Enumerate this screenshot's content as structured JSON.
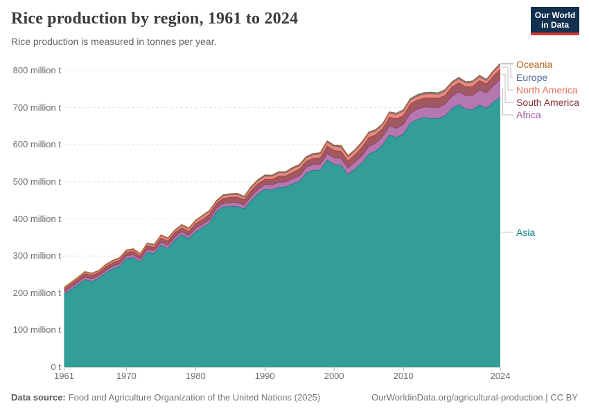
{
  "header": {
    "title": "Rice production by region, 1961 to 2024",
    "subtitle": "Rice production is measured in tonnes per year.",
    "logo_line1": "Our World",
    "logo_line2": "in Data",
    "logo_bg_color": "#12304f",
    "logo_bar_color": "#d8352f"
  },
  "footer": {
    "datasource_label": "Data source:",
    "datasource_text": "Food and Agriculture Organization of the United Nations (2025)",
    "attribution": "OurWorldinData.org/agricultural-production | CC BY"
  },
  "chart_data": {
    "type": "area",
    "stacked": true,
    "title": "Rice production by region, 1961 to 2024",
    "xlabel": "",
    "ylabel": "tonnes per year",
    "unit": "million tonnes",
    "ylim": [
      0,
      830
    ],
    "grid": "dashed horizontal gridlines",
    "legend_position": "right",
    "x": [
      1961,
      1962,
      1963,
      1964,
      1965,
      1966,
      1967,
      1968,
      1969,
      1970,
      1971,
      1972,
      1973,
      1974,
      1975,
      1976,
      1977,
      1978,
      1979,
      1980,
      1981,
      1982,
      1983,
      1984,
      1985,
      1986,
      1987,
      1988,
      1989,
      1990,
      1991,
      1992,
      1993,
      1994,
      1995,
      1996,
      1997,
      1998,
      1999,
      2000,
      2001,
      2002,
      2003,
      2004,
      2005,
      2006,
      2007,
      2008,
      2009,
      2010,
      2011,
      2012,
      2013,
      2014,
      2015,
      2016,
      2017,
      2018,
      2019,
      2020,
      2021,
      2022,
      2023,
      2024
    ],
    "series": [
      {
        "name": "Asia",
        "color": "#00847E",
        "values": [
          197.4,
          209.8,
          223.0,
          236.5,
          231.7,
          239.8,
          253.9,
          264.9,
          272.0,
          292.8,
          295.8,
          283.7,
          310.7,
          306.1,
          329.2,
          320.3,
          342.6,
          357.3,
          346.8,
          365.4,
          376.5,
          389.0,
          419.7,
          432.6,
          433.4,
          433.8,
          427.2,
          449.0,
          467.9,
          480.4,
          477.7,
          485.0,
          486.4,
          494.2,
          501.2,
          524.0,
          531.2,
          531.7,
          559.0,
          546.8,
          545.2,
          519.2,
          535.2,
          550.6,
          575.0,
          582.2,
          599.7,
          626.5,
          619.1,
          628.4,
          657.7,
          667.7,
          673.7,
          671.0,
          670.5,
          677.7,
          697.1,
          708.1,
          696.2,
          694.4,
          707.4,
          698.2,
          715.0,
          728.6
        ]
      },
      {
        "name": "Africa",
        "color": "#A2559C",
        "values": [
          6.1,
          6.3,
          6.6,
          6.7,
          6.5,
          6.6,
          7.0,
          7.2,
          7.3,
          7.4,
          7.6,
          7.4,
          7.5,
          8.0,
          8.2,
          8.3,
          7.9,
          8.2,
          8.4,
          8.6,
          8.9,
          8.9,
          8.5,
          9.2,
          9.8,
          10.2,
          10.0,
          11.2,
          11.8,
          12.5,
          13.2,
          13.5,
          13.5,
          14.2,
          14.6,
          15.5,
          15.1,
          15.9,
          16.8,
          17.4,
          17.4,
          17.7,
          18.3,
          19.0,
          20.5,
          21.8,
          21.5,
          24.0,
          24.8,
          26.4,
          26.0,
          27.5,
          28.0,
          29.5,
          29.5,
          31.5,
          33.0,
          34.5,
          36.5,
          38.3,
          40.0,
          41.5,
          44.0,
          47.0
        ]
      },
      {
        "name": "South America",
        "color": "#883039",
        "values": [
          7.3,
          7.8,
          8.0,
          9.2,
          10.1,
          8.6,
          9.9,
          9.3,
          9.4,
          9.8,
          9.3,
          9.0,
          9.4,
          9.9,
          11.0,
          12.0,
          12.5,
          10.5,
          11.2,
          13.1,
          13.2,
          14.5,
          13.0,
          13.6,
          14.9,
          15.3,
          14.6,
          15.7,
          15.4,
          14.0,
          15.5,
          16.5,
          15.8,
          17.0,
          18.5,
          16.5,
          17.0,
          17.5,
          20.5,
          20.6,
          19.8,
          19.5,
          19.8,
          23.0,
          24.0,
          23.0,
          22.0,
          24.0,
          26.0,
          23.5,
          26.5,
          25.0,
          24.5,
          25.2,
          25.5,
          23.5,
          25.5,
          24.5,
          24.0,
          24.5,
          25.5,
          24.5,
          26.0,
          27.5
        ]
      },
      {
        "name": "North America",
        "color": "#E56E5A",
        "values": [
          2.9,
          3.2,
          3.4,
          3.6,
          3.8,
          4.1,
          4.4,
          4.7,
          4.4,
          4.2,
          4.5,
          4.6,
          4.9,
          5.6,
          6.1,
          5.8,
          5.0,
          6.3,
          6.3,
          6.9,
          8.3,
          7.3,
          5.4,
          6.8,
          6.4,
          6.4,
          6.1,
          7.5,
          7.5,
          7.9,
          7.8,
          8.6,
          7.8,
          9.5,
          8.7,
          8.5,
          9.0,
          9.2,
          10.1,
          9.6,
          10.5,
          10.2,
          9.9,
          11.1,
          10.9,
          9.6,
          9.8,
          10.2,
          11.0,
          11.6,
          9.2,
          9.8,
          9.4,
          11.0,
          9.6,
          11.2,
          9.1,
          10.2,
          9.3,
          10.7,
          9.7,
          8.1,
          10.5,
          12.3
        ]
      },
      {
        "name": "Europe",
        "color": "#4C6A9C",
        "values": [
          1.7,
          1.7,
          1.8,
          1.8,
          1.7,
          1.7,
          1.8,
          1.9,
          1.9,
          1.8,
          1.9,
          1.9,
          2.0,
          2.0,
          2.0,
          1.9,
          1.9,
          2.1,
          2.1,
          2.2,
          2.3,
          2.4,
          2.4,
          2.5,
          2.6,
          2.6,
          2.7,
          2.7,
          2.8,
          2.8,
          2.9,
          2.9,
          2.8,
          2.8,
          2.9,
          3.0,
          3.1,
          3.1,
          3.2,
          3.2,
          3.3,
          3.4,
          3.5,
          3.6,
          3.7,
          3.6,
          3.7,
          3.8,
          4.2,
          4.4,
          4.3,
          4.2,
          4.1,
          4.2,
          4.3,
          4.3,
          4.2,
          4.1,
          4.0,
          4.0,
          4.2,
          3.8,
          3.9,
          4.0
        ]
      },
      {
        "name": "Oceania",
        "color": "#B16214",
        "values": [
          0.2,
          0.2,
          0.2,
          0.2,
          0.2,
          0.2,
          0.3,
          0.3,
          0.3,
          0.3,
          0.3,
          0.4,
          0.3,
          0.4,
          0.5,
          0.5,
          0.6,
          0.6,
          0.7,
          0.7,
          0.9,
          0.9,
          0.7,
          0.9,
          0.9,
          0.8,
          0.8,
          0.9,
          1.0,
          1.0,
          1.0,
          1.1,
          1.1,
          1.2,
          1.3,
          1.0,
          1.4,
          1.4,
          1.4,
          1.1,
          1.8,
          1.3,
          0.4,
          0.6,
          0.3,
          1.0,
          0.2,
          0.1,
          0.1,
          0.2,
          0.7,
          0.9,
          1.2,
          0.8,
          0.7,
          0.3,
          0.8,
          0.6,
          0.1,
          0.1,
          0.5,
          0.4,
          0.5,
          0.6
        ]
      }
    ],
    "y_ticks": [
      {
        "value": 0,
        "label": "0 t"
      },
      {
        "value": 100,
        "label": "100 million t"
      },
      {
        "value": 200,
        "label": "200 million t"
      },
      {
        "value": 300,
        "label": "300 million t"
      },
      {
        "value": 400,
        "label": "400 million t"
      },
      {
        "value": 500,
        "label": "500 million t"
      },
      {
        "value": 600,
        "label": "600 million t"
      },
      {
        "value": 700,
        "label": "700 million t"
      },
      {
        "value": 800,
        "label": "800 million t"
      }
    ],
    "x_ticks": [
      {
        "value": 1961,
        "label": "1961"
      },
      {
        "value": 1970,
        "label": "1970"
      },
      {
        "value": 1980,
        "label": "1980"
      },
      {
        "value": 1990,
        "label": "1990"
      },
      {
        "value": 2000,
        "label": "2000"
      },
      {
        "value": 2010,
        "label": "2010"
      },
      {
        "value": 2024,
        "label": "2024"
      }
    ],
    "legend": [
      {
        "label": "Oceania",
        "color": "#B16214"
      },
      {
        "label": "Europe",
        "color": "#4C6A9C"
      },
      {
        "label": "North America",
        "color": "#E56E5A"
      },
      {
        "label": "South America",
        "color": "#883039"
      },
      {
        "label": "Africa",
        "color": "#A2559C"
      },
      {
        "label": "Asia",
        "color": "#00847E"
      }
    ]
  }
}
